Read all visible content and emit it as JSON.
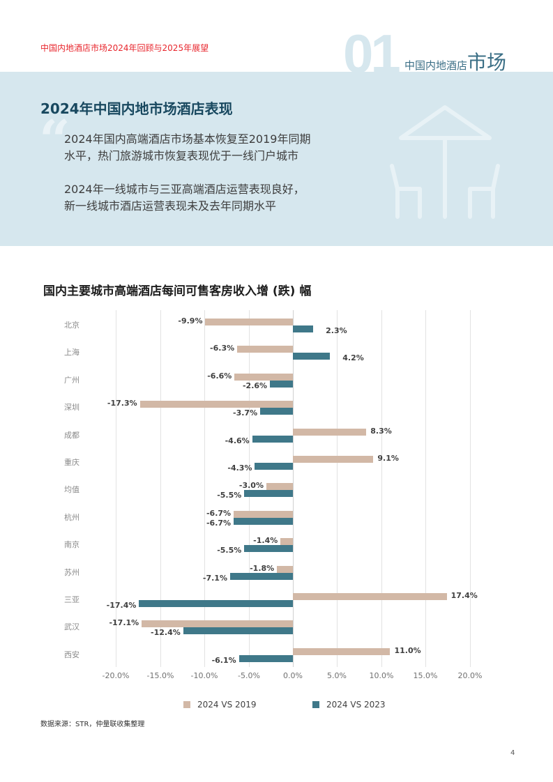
{
  "header": {
    "running_title": "中国内地酒店市场2024年回顾与2025年展望",
    "section_number": "01",
    "section_label_small": "中国内地酒店",
    "section_label_big": "市场"
  },
  "banner": {
    "title": "2024年中国内地市场酒店表现",
    "quote_icon": "“",
    "paragraphs": [
      [
        "2024年国内高端酒店市场基本恢复至2019年同期",
        "水平，热门旅游城市恢复表现优于一线门户城市"
      ],
      [
        "2024年一线城市与三亚高端酒店运营表现良好，",
        "新一线城市酒店运营表现未及去年同期水平"
      ]
    ],
    "illustration": "umbrella-table-chairs-icon"
  },
  "colors": {
    "series1": "#d2b8a6",
    "series2": "#3f7889",
    "accent_red": "#e8262d",
    "banner_bg": "#d6e7ee",
    "title_dark": "#18485f"
  },
  "chart_data": {
    "type": "bar",
    "orientation": "horizontal",
    "title": "国内主要城市高端酒店每间可售客房收入增 (跌) 幅",
    "categories": [
      "北京",
      "上海",
      "广州",
      "深圳",
      "成都",
      "重庆",
      "均值",
      "杭州",
      "南京",
      "苏州",
      "三亚",
      "武汉",
      "西安"
    ],
    "series": [
      {
        "name": "2024 VS 2019",
        "values": [
          -9.9,
          -6.3,
          -6.6,
          -17.3,
          8.3,
          9.1,
          -3.0,
          -6.7,
          -1.4,
          -1.8,
          17.4,
          -17.1,
          11.0
        ]
      },
      {
        "name": "2024 VS 2023",
        "values": [
          2.3,
          4.2,
          -2.6,
          -3.7,
          -4.6,
          -4.3,
          -5.5,
          -6.7,
          -5.5,
          -7.1,
          -17.4,
          -12.4,
          -6.1
        ]
      }
    ],
    "xlim": [
      -20,
      20
    ],
    "xticks": [
      "-20.0%",
      "-15.0%",
      "-10.0%",
      "-5.0%",
      "0.0%",
      "5.0%",
      "10.0%",
      "15.0%",
      "20.0%"
    ],
    "xlabel": "",
    "ylabel": "",
    "grid": true,
    "legend_position": "bottom"
  },
  "footer": {
    "source": "数据来源：STR，仲量联收集整理",
    "page_number": "4"
  }
}
